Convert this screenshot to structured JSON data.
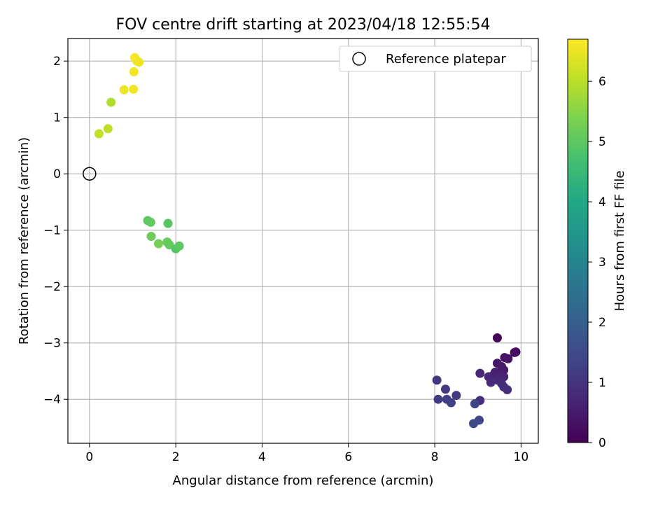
{
  "chart_data": {
    "type": "scatter",
    "title": "FOV centre drift starting at 2023/04/18 12:55:54",
    "xlabel": "Angular distance from reference (arcmin)",
    "ylabel": "Rotation from reference (arcmin)",
    "xlim": [
      -0.5,
      10.4
    ],
    "ylim": [
      -4.78,
      2.4
    ],
    "xticks": [
      0,
      2,
      4,
      6,
      8,
      10
    ],
    "yticks": [
      -4,
      -3,
      -2,
      -1,
      0,
      1,
      2
    ],
    "xtick_labels": [
      "0",
      "2",
      "4",
      "6",
      "8",
      "10"
    ],
    "ytick_labels": [
      "−4",
      "−3",
      "−2",
      "−1",
      "0",
      "1",
      "2"
    ],
    "grid": true,
    "legend": {
      "location": "upper right",
      "entries": [
        "Reference platepar"
      ]
    },
    "reference_point": {
      "x": 0,
      "y": 0,
      "label": "Reference platepar"
    },
    "colorbar": {
      "label": "Hours from first FF file",
      "colormap": "viridis",
      "min": 0,
      "max": 6.7,
      "ticks": [
        0,
        1,
        2,
        3,
        4,
        5,
        6
      ],
      "tick_labels": [
        "0",
        "1",
        "2",
        "3",
        "4",
        "5",
        "6"
      ]
    },
    "points": [
      {
        "x": 9.45,
        "y": -2.91,
        "c": 0.05
      },
      {
        "x": 9.88,
        "y": -3.16,
        "c": 0.1
      },
      {
        "x": 9.85,
        "y": -3.17,
        "c": 0.2
      },
      {
        "x": 9.62,
        "y": -3.26,
        "c": 0.3
      },
      {
        "x": 9.7,
        "y": -3.28,
        "c": 0.35
      },
      {
        "x": 9.45,
        "y": -3.36,
        "c": 0.4
      },
      {
        "x": 9.55,
        "y": -3.42,
        "c": 0.45
      },
      {
        "x": 9.6,
        "y": -3.48,
        "c": 0.5
      },
      {
        "x": 9.4,
        "y": -3.52,
        "c": 0.55
      },
      {
        "x": 9.5,
        "y": -3.55,
        "c": 0.6
      },
      {
        "x": 9.35,
        "y": -3.58,
        "c": 0.62
      },
      {
        "x": 9.6,
        "y": -3.6,
        "c": 0.65
      },
      {
        "x": 9.25,
        "y": -3.6,
        "c": 0.7
      },
      {
        "x": 9.5,
        "y": -3.62,
        "c": 0.72
      },
      {
        "x": 9.05,
        "y": -3.54,
        "c": 0.75
      },
      {
        "x": 9.45,
        "y": -3.66,
        "c": 0.78
      },
      {
        "x": 9.3,
        "y": -3.7,
        "c": 0.8
      },
      {
        "x": 9.55,
        "y": -3.72,
        "c": 0.82
      },
      {
        "x": 9.6,
        "y": -3.78,
        "c": 0.85
      },
      {
        "x": 9.68,
        "y": -3.83,
        "c": 0.88
      },
      {
        "x": 9.05,
        "y": -4.02,
        "c": 0.9
      },
      {
        "x": 8.05,
        "y": -3.66,
        "c": 1.05
      },
      {
        "x": 8.25,
        "y": -3.82,
        "c": 1.1
      },
      {
        "x": 8.5,
        "y": -3.93,
        "c": 1.15
      },
      {
        "x": 8.08,
        "y": -4.0,
        "c": 1.2
      },
      {
        "x": 8.28,
        "y": -4.0,
        "c": 1.25
      },
      {
        "x": 8.38,
        "y": -4.06,
        "c": 1.3
      },
      {
        "x": 8.93,
        "y": -4.08,
        "c": 1.35
      },
      {
        "x": 9.03,
        "y": -4.37,
        "c": 1.4
      },
      {
        "x": 8.9,
        "y": -4.43,
        "c": 1.45
      },
      {
        "x": 1.35,
        "y": -0.83,
        "c": 5.0
      },
      {
        "x": 1.42,
        "y": -0.86,
        "c": 5.05
      },
      {
        "x": 1.82,
        "y": -0.88,
        "c": 4.95
      },
      {
        "x": 1.43,
        "y": -1.11,
        "c": 5.2
      },
      {
        "x": 1.6,
        "y": -1.24,
        "c": 5.3
      },
      {
        "x": 1.8,
        "y": -1.21,
        "c": 5.15
      },
      {
        "x": 1.85,
        "y": -1.26,
        "c": 5.1
      },
      {
        "x": 2.0,
        "y": -1.33,
        "c": 4.9
      },
      {
        "x": 2.08,
        "y": -1.28,
        "c": 5.0
      },
      {
        "x": 0.22,
        "y": 0.71,
        "c": 6.1
      },
      {
        "x": 0.43,
        "y": 0.8,
        "c": 6.05
      },
      {
        "x": 0.5,
        "y": 1.27,
        "c": 5.9
      },
      {
        "x": 0.8,
        "y": 1.49,
        "c": 6.5
      },
      {
        "x": 1.02,
        "y": 1.5,
        "c": 6.55
      },
      {
        "x": 1.03,
        "y": 1.81,
        "c": 6.6
      },
      {
        "x": 1.05,
        "y": 2.06,
        "c": 6.65
      },
      {
        "x": 1.1,
        "y": 2.0,
        "c": 6.6
      },
      {
        "x": 1.15,
        "y": 1.98,
        "c": 6.55
      }
    ]
  }
}
